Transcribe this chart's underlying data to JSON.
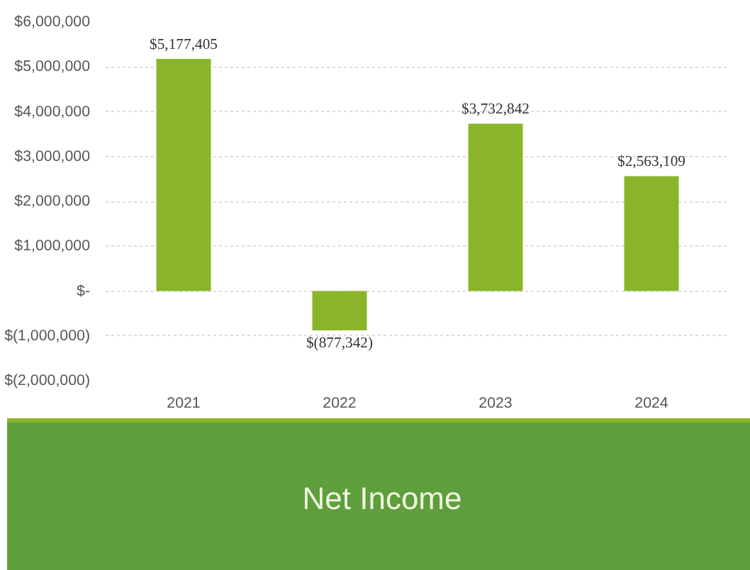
{
  "chart_data": {
    "type": "bar",
    "title": "Net Income",
    "categories": [
      "2021",
      "2022",
      "2023",
      "2024"
    ],
    "values": [
      5177405,
      -877342,
      3732842,
      2563109
    ],
    "value_labels": [
      "$5,177,405",
      "$(877,342)",
      "$3,732,842",
      "$2,563,109"
    ],
    "color": "#8ab52a",
    "ylim": [
      -2000000,
      6000000
    ],
    "yticks": [
      {
        "value": 6000000,
        "label": "$6,000,000"
      },
      {
        "value": 5000000,
        "label": "$5,000,000"
      },
      {
        "value": 4000000,
        "label": "$4,000,000"
      },
      {
        "value": 3000000,
        "label": "$3,000,000"
      },
      {
        "value": 2000000,
        "label": "$2,000,000"
      },
      {
        "value": 1000000,
        "label": "$1,000,000"
      },
      {
        "value": 0,
        "label": "$-"
      },
      {
        "value": -1000000,
        "label": "$(1,000,000)"
      },
      {
        "value": -2000000,
        "label": "$(2,000,000)"
      }
    ],
    "grid": "y"
  }
}
